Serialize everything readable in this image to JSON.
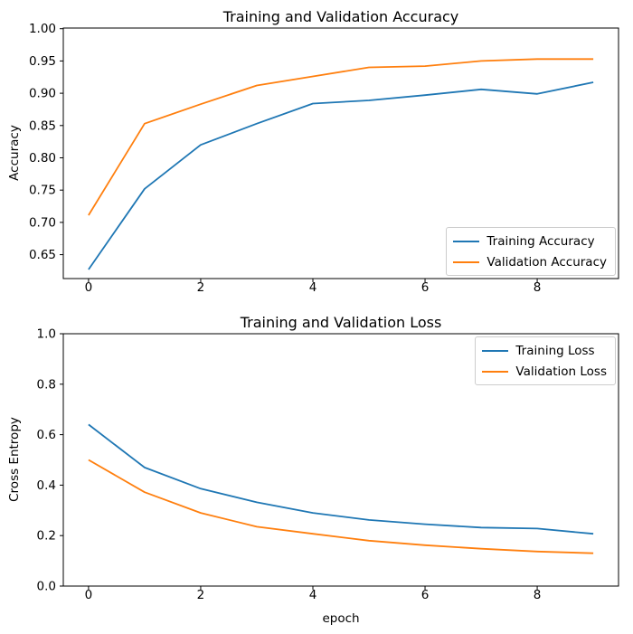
{
  "figure": {
    "background": "#ffffff",
    "axis_color": "#000000"
  },
  "chart_data": [
    {
      "type": "line",
      "title": "Training and Validation Accuracy",
      "xlabel": "",
      "ylabel": "Accuracy",
      "x": [
        0,
        1,
        2,
        3,
        4,
        5,
        6,
        7,
        8,
        9
      ],
      "xtick_values": [
        0,
        2,
        4,
        6,
        8
      ],
      "xtick_labels": [
        "0",
        "2",
        "4",
        "6",
        "8"
      ],
      "ytick_values": [
        0.65,
        0.7,
        0.75,
        0.8,
        0.85,
        0.9,
        0.95,
        1.0
      ],
      "ytick_labels": [
        "0.65",
        "0.70",
        "0.75",
        "0.80",
        "0.85",
        "0.90",
        "0.95",
        "1.00"
      ],
      "xlim": [
        -0.45,
        9.45
      ],
      "ylim": [
        0.613,
        1.001
      ],
      "grid": false,
      "legend": {
        "position": "lower right"
      },
      "series": [
        {
          "name": "Training Accuracy",
          "color": "#1f77b4",
          "values": [
            0.627,
            0.752,
            0.82,
            0.853,
            0.884,
            0.889,
            0.897,
            0.906,
            0.899,
            0.917
          ]
        },
        {
          "name": "Validation Accuracy",
          "color": "#ff7f0e",
          "values": [
            0.711,
            0.853,
            0.883,
            0.912,
            0.926,
            0.94,
            0.942,
            0.95,
            0.953,
            0.953
          ]
        }
      ]
    },
    {
      "type": "line",
      "title": "Training and Validation Loss",
      "xlabel": "epoch",
      "ylabel": "Cross Entropy",
      "x": [
        0,
        1,
        2,
        3,
        4,
        5,
        6,
        7,
        8,
        9
      ],
      "xtick_values": [
        0,
        2,
        4,
        6,
        8
      ],
      "xtick_labels": [
        "0",
        "2",
        "4",
        "6",
        "8"
      ],
      "ytick_values": [
        0.0,
        0.2,
        0.4,
        0.6,
        0.8,
        1.0
      ],
      "ytick_labels": [
        "0.0",
        "0.2",
        "0.4",
        "0.6",
        "0.8",
        "1.0"
      ],
      "xlim": [
        -0.45,
        9.45
      ],
      "ylim": [
        0.0,
        1.0
      ],
      "grid": false,
      "legend": {
        "position": "upper right"
      },
      "series": [
        {
          "name": "Training Loss",
          "color": "#1f77b4",
          "values": [
            0.64,
            0.47,
            0.386,
            0.332,
            0.29,
            0.262,
            0.245,
            0.232,
            0.228,
            0.207
          ]
        },
        {
          "name": "Validation Loss",
          "color": "#ff7f0e",
          "values": [
            0.5,
            0.372,
            0.29,
            0.235,
            0.207,
            0.18,
            0.162,
            0.148,
            0.137,
            0.13
          ]
        }
      ]
    }
  ]
}
